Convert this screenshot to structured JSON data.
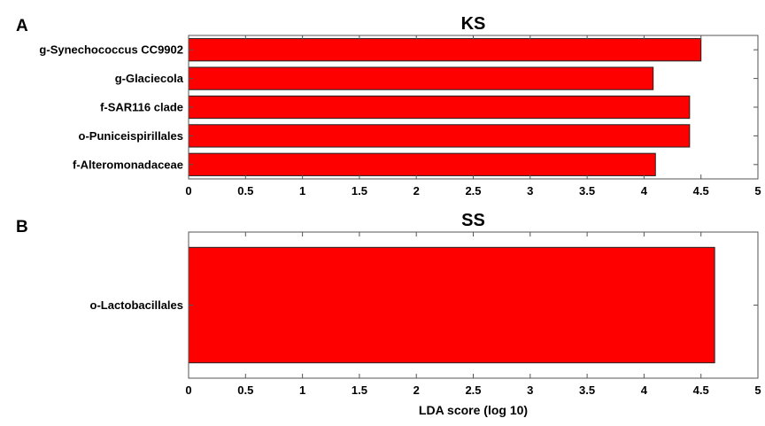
{
  "figure": {
    "bar_color": "#ff0000"
  },
  "chart_data": [
    {
      "type": "bar",
      "orientation": "horizontal",
      "panel": "A",
      "title": "KS",
      "categories": [
        "g-Synechococcus CC9902",
        "g-Glaciecola",
        "f-SAR116 clade",
        "o-Puniceispirillales",
        "f-Alteromonadaceae"
      ],
      "values": [
        4.5,
        4.08,
        4.4,
        4.4,
        4.1
      ],
      "xlim": [
        0,
        5
      ],
      "xticks": [
        "0",
        "0.5",
        "1",
        "1.5",
        "2",
        "2.5",
        "3",
        "3.5",
        "4",
        "4.5",
        "5"
      ],
      "xlabel": "",
      "grid": false
    },
    {
      "type": "bar",
      "orientation": "horizontal",
      "panel": "B",
      "title": "SS",
      "categories": [
        "o-Lactobacillales"
      ],
      "values": [
        4.62
      ],
      "xlim": [
        0,
        5
      ],
      "xticks": [
        "0",
        "0.5",
        "1",
        "1.5",
        "2",
        "2.5",
        "3",
        "3.5",
        "4",
        "4.5",
        "5"
      ],
      "xlabel": "LDA score (log 10)",
      "grid": false
    }
  ]
}
